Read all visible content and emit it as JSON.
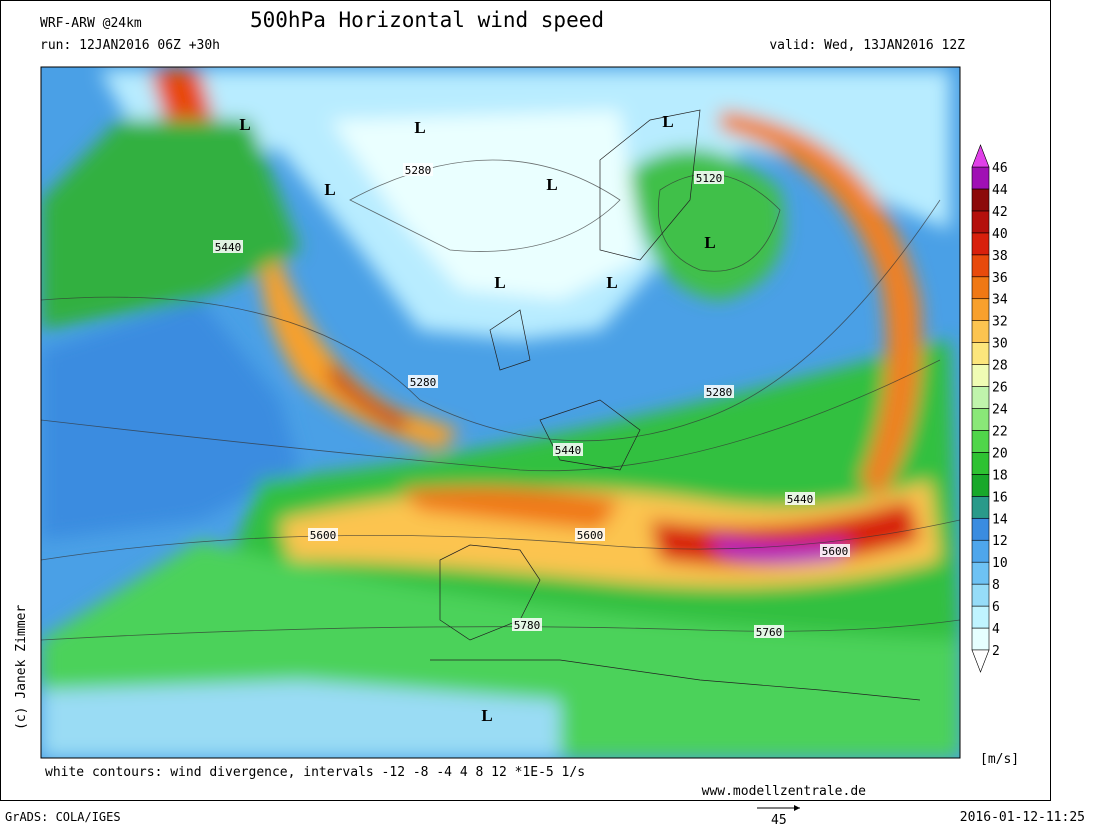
{
  "header": {
    "model": "WRF-ARW @24km",
    "title": "500hPa Horizontal wind speed",
    "run": "run: 12JAN2016 06Z +30h",
    "valid": "valid: Wed, 13JAN2016 12Z"
  },
  "map": {
    "lows": [
      "L",
      "L",
      "L",
      "L",
      "L",
      "L",
      "L",
      "L",
      "L"
    ],
    "contour_labels": [
      "5280",
      "5120",
      "5440",
      "5280",
      "5280",
      "5440",
      "5440",
      "5600",
      "5600",
      "5600",
      "5780",
      "5760"
    ]
  },
  "colorbar": {
    "unit": "[m/s]",
    "levels": [
      2,
      4,
      6,
      8,
      10,
      12,
      14,
      16,
      18,
      20,
      22,
      24,
      26,
      28,
      30,
      32,
      34,
      36,
      38,
      40,
      42,
      44,
      46
    ],
    "colors": [
      "#e6ffff",
      "#c0f4ff",
      "#96dcf8",
      "#6ec2f4",
      "#4ea6ec",
      "#3a8ce0",
      "#2a9a8a",
      "#18a82a",
      "#2ec232",
      "#50d64a",
      "#8ae878",
      "#c0f4ac",
      "#f0fcb4",
      "#fce67c",
      "#fcc450",
      "#f8a02c",
      "#f07814",
      "#e84a0c",
      "#d8200c",
      "#b4100c",
      "#8c0a0a",
      "#a010b4"
    ],
    "over_color": "#e040e8",
    "under_color": "#ffffff"
  },
  "footer": {
    "copyright": "(c) Janek Zimmer",
    "note": "white contours: wind divergence, intervals -12 -8 -4 4 8 12 *1E-5 1/s",
    "website": "www.modellzentrale.de",
    "software": "GrADS: COLA/IGES",
    "timestamp": "2016-01-12-11:25",
    "vector_scale": "45"
  }
}
